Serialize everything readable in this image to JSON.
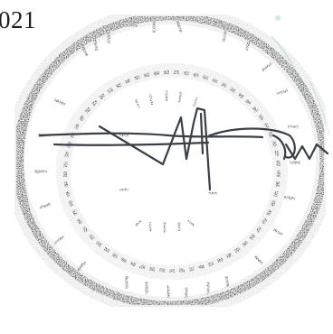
{
  "document": {
    "visible_text_fragment": "021"
  },
  "stamp": {
    "ink_color": "#2b2b2b",
    "shape": "double-ring-circle",
    "legible": false
  },
  "signature": {
    "ink_color": "#3a3f45",
    "style": "handwritten-scribble"
  },
  "scan_marks": {
    "tint_color": "#8fd3cf"
  }
}
